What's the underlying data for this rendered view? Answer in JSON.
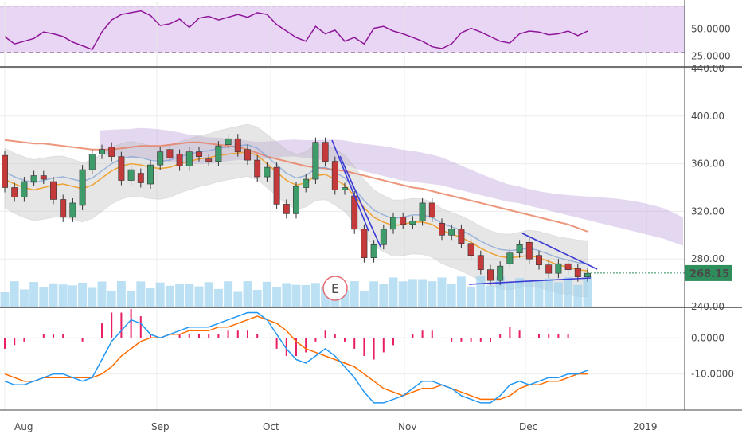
{
  "chart_data": {
    "type": "candlestick",
    "colors": {
      "up": "#53b987",
      "down": "#eb4d5c",
      "up_display": "#3e9c6a",
      "down_display": "#c43a3a",
      "last_price_tag": "#2f8f5c",
      "rsi_line": "#8e1599",
      "rsi_band": "#e9d6f4",
      "macd_line": "#2196f3",
      "signal_line": "#ff6d00",
      "histogram": "#e91e63",
      "volume": "#9ed3f0",
      "ichimoku_cloud": "#c4a9dd",
      "wedge_lines": "#3b3bd6"
    },
    "x_axis": {
      "tick_labels": [
        "Aug",
        "Sep",
        "Oct",
        "Nov",
        "Dec",
        "2019"
      ]
    },
    "rsi_pane": {
      "y_ticks": [
        "50.0000",
        "25.0000"
      ],
      "upper_band": 75,
      "lower_band": 25,
      "values": [
        42,
        34,
        37,
        40,
        47,
        45,
        42,
        36,
        32,
        28,
        47,
        60,
        66,
        68,
        70,
        65,
        54,
        56,
        61,
        52,
        62,
        64,
        60,
        63,
        66,
        63,
        68,
        66,
        55,
        48,
        41,
        37,
        53,
        45,
        49,
        37,
        41,
        34,
        51,
        53,
        48,
        45,
        41,
        37,
        31,
        29,
        34,
        46,
        51,
        47,
        42,
        37,
        35,
        45,
        48,
        47,
        44,
        45,
        48,
        43,
        48
      ]
    },
    "price_pane": {
      "y_ticks": [
        "440.00",
        "400.00",
        "360.00",
        "320.00",
        "280.00",
        "240.00"
      ],
      "ylim": [
        240,
        440
      ],
      "last_price": "268.15",
      "annotation": "E",
      "candles": [
        [
          367,
          340
        ],
        [
          340,
          332
        ],
        [
          332,
          345
        ],
        [
          345,
          350
        ],
        [
          350,
          347
        ],
        [
          345,
          330
        ],
        [
          330,
          315
        ],
        [
          315,
          327
        ],
        [
          325,
          355
        ],
        [
          355,
          368
        ],
        [
          368,
          372
        ],
        [
          374,
          366
        ],
        [
          366,
          346
        ],
        [
          346,
          355
        ],
        [
          352,
          344
        ],
        [
          343,
          359
        ],
        [
          359,
          370
        ],
        [
          372,
          365
        ],
        [
          368,
          358
        ],
        [
          358,
          370
        ],
        [
          370,
          366
        ],
        [
          364,
          362
        ],
        [
          362,
          375
        ],
        [
          376,
          381
        ],
        [
          381,
          370
        ],
        [
          372,
          363
        ],
        [
          363,
          349
        ],
        [
          349,
          357
        ],
        [
          357,
          326
        ],
        [
          326,
          318
        ],
        [
          318,
          341
        ],
        [
          340,
          347
        ],
        [
          347,
          378
        ],
        [
          378,
          362
        ],
        [
          362,
          338
        ],
        [
          338,
          340
        ],
        [
          333,
          305
        ],
        [
          305,
          281
        ],
        [
          281,
          292
        ],
        [
          292,
          305
        ],
        [
          305,
          315
        ],
        [
          315,
          309
        ],
        [
          309,
          312
        ],
        [
          312,
          327
        ],
        [
          327,
          315
        ],
        [
          310,
          300
        ],
        [
          300,
          305
        ],
        [
          305,
          293
        ],
        [
          293,
          283
        ],
        [
          283,
          271
        ],
        [
          271,
          262
        ],
        [
          262,
          274
        ],
        [
          276,
          285
        ],
        [
          285,
          292
        ],
        [
          294,
          280
        ],
        [
          283,
          275
        ],
        [
          275,
          268
        ],
        [
          268,
          276
        ],
        [
          276,
          271
        ],
        [
          272,
          265
        ],
        [
          265,
          268
        ]
      ],
      "sma_orange": [
        347,
        343,
        340,
        338,
        340,
        342,
        343,
        341,
        339,
        342,
        348,
        354,
        358,
        360,
        359,
        357,
        356,
        357,
        360,
        362,
        364,
        365,
        367,
        368,
        369,
        370,
        367,
        360,
        353,
        346,
        342,
        344,
        350,
        351,
        347,
        342,
        333,
        323,
        315,
        311,
        308,
        309,
        311,
        311,
        309,
        304,
        301,
        298,
        294,
        289,
        285,
        282,
        281,
        282,
        283,
        281,
        278,
        275,
        273,
        271,
        270
      ],
      "ema_long": [
        380,
        379,
        378,
        377,
        377,
        376,
        375,
        374,
        373,
        372,
        372,
        372,
        373,
        374,
        375,
        375,
        375,
        376,
        377,
        378,
        378,
        377,
        376,
        375,
        374,
        372,
        369,
        366,
        364,
        362,
        360,
        358,
        357,
        356,
        355,
        354,
        352,
        350,
        348,
        346,
        344,
        342,
        340,
        339,
        337,
        335,
        333,
        331,
        329,
        327,
        325,
        323,
        321,
        319,
        317,
        315,
        313,
        311,
        309,
        306,
        303
      ]
    },
    "macd_pane": {
      "y_ticks": [
        "0.0000",
        "-10.0000"
      ],
      "ylim": [
        -20,
        8
      ],
      "macd": [
        -12,
        -13,
        -13,
        -12,
        -11,
        -10,
        -10,
        -11,
        -12,
        -11,
        -6,
        -1,
        2,
        5,
        4,
        1,
        0,
        1,
        2,
        3,
        3,
        3,
        4,
        5,
        6,
        7,
        7,
        5,
        1,
        -3,
        -6,
        -7,
        -5,
        -3,
        -5,
        -8,
        -11,
        -15,
        -18,
        -18,
        -17,
        -16,
        -14,
        -12,
        -12,
        -13,
        -14,
        -16,
        -17,
        -18,
        -18,
        -16,
        -13,
        -12,
        -13,
        -12,
        -11,
        -11,
        -10,
        -10,
        -9
      ],
      "signal": [
        -10,
        -11,
        -12,
        -12,
        -11,
        -11,
        -11,
        -11,
        -11,
        -11,
        -10,
        -8,
        -5,
        -3,
        -1,
        0,
        0,
        1,
        1,
        2,
        2,
        2,
        3,
        3,
        4,
        5,
        6,
        5,
        4,
        2,
        -1,
        -3,
        -4,
        -5,
        -6,
        -7,
        -8,
        -10,
        -12,
        -14,
        -15,
        -16,
        -15,
        -14,
        -14,
        -13,
        -14,
        -15,
        -16,
        -17,
        -17,
        -17,
        -16,
        -14,
        -13,
        -13,
        -12,
        -12,
        -11,
        -10,
        -10
      ],
      "histogram": [
        -3,
        -2,
        -1,
        0,
        1,
        1,
        1,
        0,
        -1,
        0,
        4,
        7,
        7,
        8,
        6,
        1,
        0,
        0,
        1,
        1,
        1,
        1,
        1,
        2,
        2,
        2,
        1,
        0,
        -3,
        -5,
        -5,
        -4,
        -1,
        2,
        1,
        -1,
        -3,
        -5,
        -6,
        -4,
        -2,
        0,
        1,
        2,
        2,
        0,
        -1,
        -1,
        -1,
        -1,
        -1,
        1,
        3,
        2,
        0,
        1,
        1,
        1,
        1,
        0,
        0
      ]
    }
  }
}
